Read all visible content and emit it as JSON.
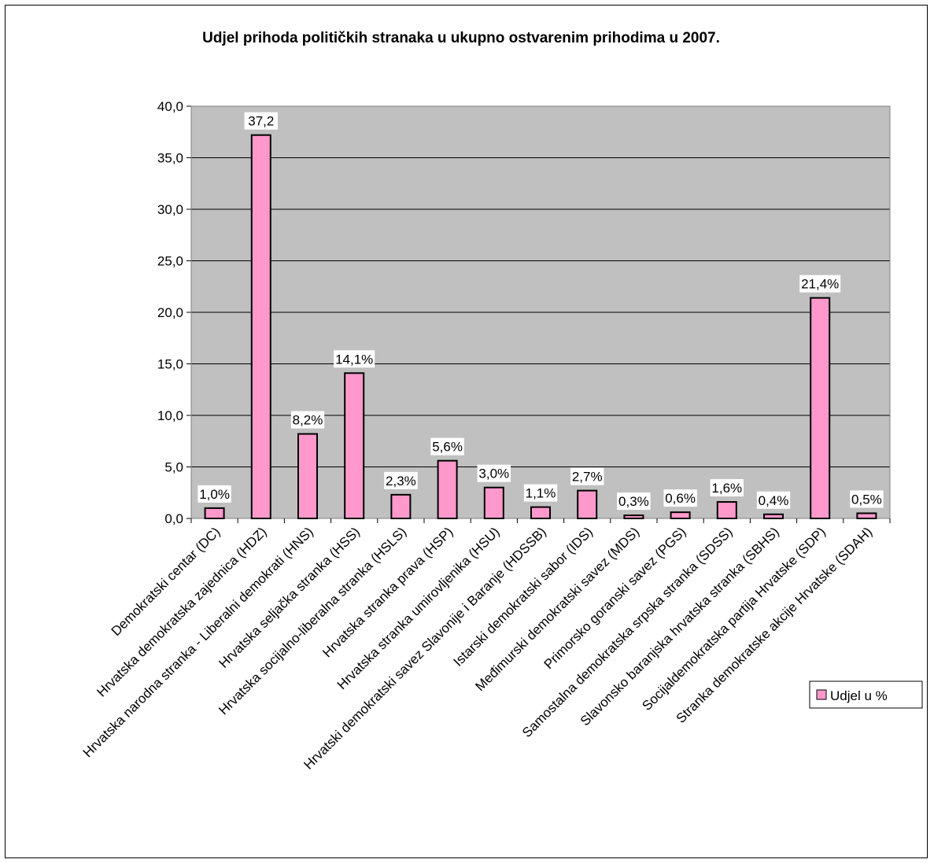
{
  "chart_data": {
    "type": "bar",
    "title": "Udjel prihoda političkih stranaka u ukupno ostvarenim prihodima u 2007.",
    "categories": [
      "Demokratski centar (DC)",
      "Hrvatska demokratska zajednica (HDZ)",
      "Hrvatska narodna stranka - Liberalni demokrati (HNS)",
      "Hrvatska seljačka stranka (HSS)",
      "Hrvatska socijalno-liberalna stranka (HSLS)",
      "Hrvatska stranka prava (HSP)",
      "Hrvatska stranka umirovljenika (HSU)",
      "Hrvatski demokratski savez Slavonije i Baranje (HDSSB)",
      "Istarski demokratski sabor (IDS)",
      "Međimurski demokratski savez (MDS)",
      "Primorsko goranski savez (PGS)",
      "Samostalna demokratska srpska stranka (SDSS)",
      "Slavonsko baranjska hrvatska stranka (SBHS)",
      "Socijaldemokratska partija Hrvatske (SDP)",
      "Stranka demokratske akcije Hrvatske (SDAH)"
    ],
    "series": [
      {
        "name": "Udjel u %",
        "values": [
          1.0,
          37.2,
          8.2,
          14.1,
          2.3,
          5.6,
          3.0,
          1.1,
          2.7,
          0.3,
          0.6,
          1.6,
          0.4,
          21.4,
          0.5
        ],
        "data_labels": [
          "1,0%",
          "37,2",
          "8,2%",
          "14,1%",
          "2,3%",
          "5,6%",
          "3,0%",
          "1,1%",
          "2,7%",
          "0,3%",
          "0,6%",
          "1,6%",
          "0,4%",
          "21,4%",
          "0,5%"
        ],
        "color": "#ff99cc"
      }
    ],
    "ylim": [
      0,
      40
    ],
    "yticks": [
      "0,0",
      "5,0",
      "10,0",
      "15,0",
      "20,0",
      "25,0",
      "30,0",
      "35,0",
      "40,0"
    ],
    "plot_background": "#c0c0c0",
    "grid": true,
    "legend": "right"
  }
}
